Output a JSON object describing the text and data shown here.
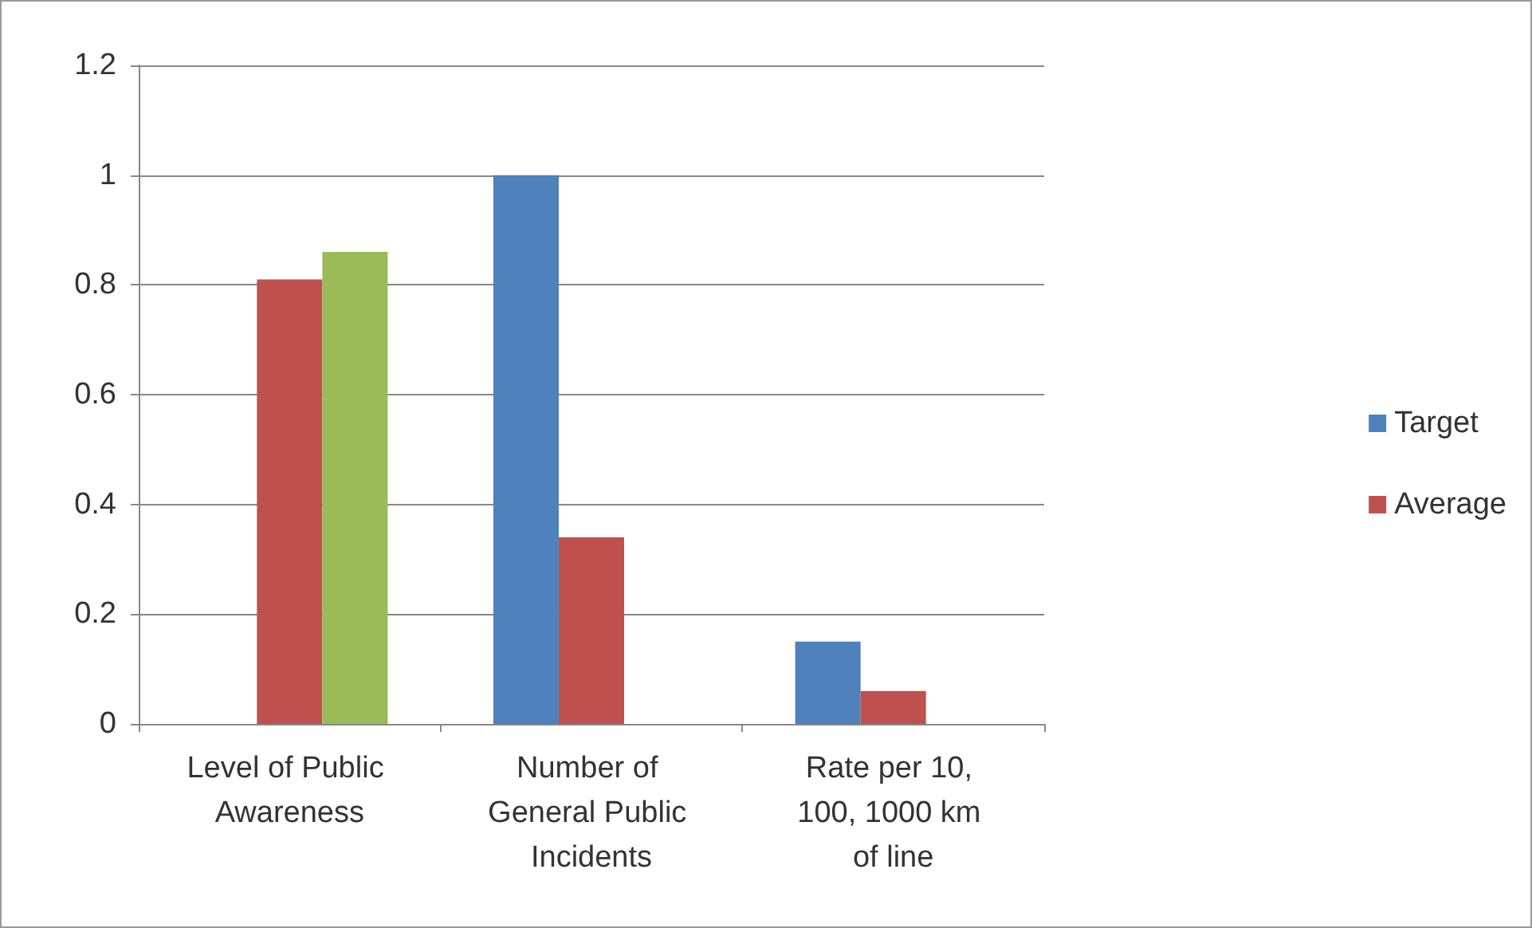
{
  "chart_data": {
    "type": "bar",
    "categories": [
      "Level of Public Awareness",
      "Number of General Public Incidents",
      "Rate per 10, 100, 1000 km of line"
    ],
    "series": [
      {
        "name": "Target",
        "color": "#4f81bd",
        "values": [
          null,
          1.0,
          0.15
        ]
      },
      {
        "name": "Average",
        "color": "#c0504d",
        "values": [
          0.81,
          0.34,
          0.06
        ]
      },
      {
        "color": "#9bbb59",
        "values": [
          0.86,
          null,
          null
        ]
      }
    ],
    "ylim": [
      0,
      1.2
    ],
    "yticks": [
      0,
      0.2,
      0.4,
      0.6,
      0.8,
      1,
      1.2
    ],
    "grid": "y",
    "legend": "right"
  }
}
